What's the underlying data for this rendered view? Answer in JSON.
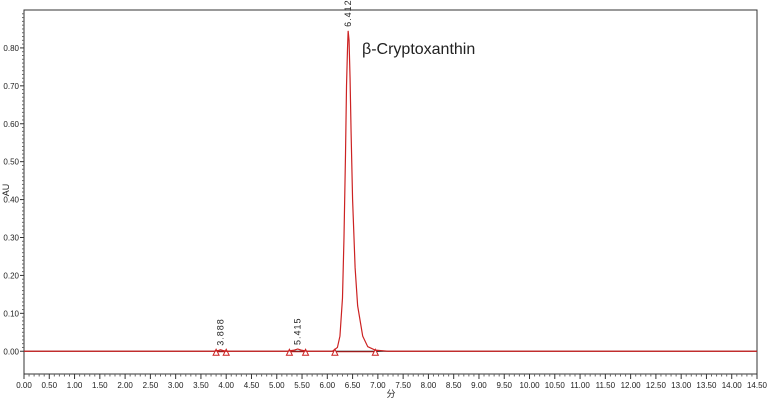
{
  "chart_data": {
    "type": "line",
    "xlabel": "分",
    "ylabel": "AU",
    "xlim": [
      0.0,
      14.5
    ],
    "ylim": [
      -0.06,
      0.9
    ],
    "x_ticks": [
      "0.00",
      "0.50",
      "1.00",
      "1.50",
      "2.00",
      "2.50",
      "3.00",
      "3.50",
      "4.00",
      "4.50",
      "5.00",
      "5.50",
      "6.00",
      "6.50",
      "7.00",
      "7.50",
      "8.00",
      "8.50",
      "9.00",
      "9.50",
      "10.00",
      "10.50",
      "11.00",
      "11.50",
      "12.00",
      "12.50",
      "13.00",
      "13.50",
      "14.00",
      "14.50"
    ],
    "y_ticks": [
      "0.00",
      "0.10",
      "0.20",
      "0.30",
      "0.40",
      "0.50",
      "0.60",
      "0.70",
      "0.80"
    ],
    "grid": false,
    "trace_color": "#cc2222",
    "baseline_color": "#000000",
    "series": [
      {
        "x": [
          0.0,
          3.75,
          3.85,
          3.888,
          3.93,
          4.0,
          5.2,
          5.35,
          5.415,
          5.48,
          5.6,
          6.1,
          6.2,
          6.25,
          6.3,
          6.33,
          6.36,
          6.38,
          6.4,
          6.412,
          6.43,
          6.45,
          6.47,
          6.5,
          6.55,
          6.6,
          6.7,
          6.8,
          6.95,
          7.2,
          14.5
        ],
        "y": [
          0.0,
          0.0,
          0.002,
          0.004,
          0.002,
          0.0,
          0.0,
          0.003,
          0.006,
          0.003,
          0.0,
          0.0,
          0.01,
          0.04,
          0.14,
          0.3,
          0.52,
          0.7,
          0.8,
          0.845,
          0.82,
          0.72,
          0.58,
          0.4,
          0.22,
          0.12,
          0.04,
          0.012,
          0.003,
          0.0,
          0.0
        ]
      }
    ],
    "peaks": [
      {
        "label": "3.888",
        "x": 3.888,
        "y": 0.004,
        "start": 3.8,
        "end": 4.0
      },
      {
        "label": "5.415",
        "x": 5.415,
        "y": 0.006,
        "start": 5.25,
        "end": 5.57
      },
      {
        "label": "6.412",
        "x": 6.412,
        "y": 0.845,
        "start": 6.15,
        "end": 6.95
      }
    ],
    "annotations": [
      {
        "text": "β-Cryptoxanthin"
      }
    ]
  }
}
